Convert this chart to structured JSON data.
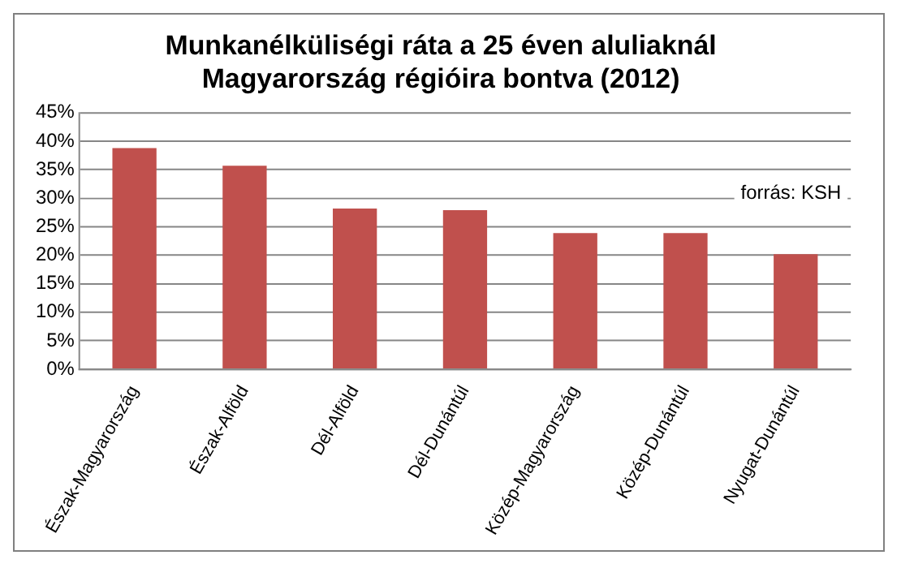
{
  "chart_data": {
    "type": "bar",
    "title": "Munkanélküliségi ráta a 25 éven aluliaknál\nMagyarország régióira bontva (2012)",
    "categories": [
      "Észak-Magyarország",
      "Észak-Alföld",
      "Dél-Alföld",
      "Dél-Dunántúl",
      "Közép-Magyarország",
      "Közép-Dunántúl",
      "Nyugat-Dunántúl"
    ],
    "values": [
      38.8,
      35.7,
      28.2,
      27.9,
      23.9,
      23.9,
      20.2
    ],
    "color": "#c0504d",
    "ylim": [
      0,
      45
    ],
    "yticks": [
      {
        "value": 0,
        "label": "0%"
      },
      {
        "value": 5,
        "label": "5%"
      },
      {
        "value": 10,
        "label": "10%"
      },
      {
        "value": 15,
        "label": "15%"
      },
      {
        "value": 20,
        "label": "20%"
      },
      {
        "value": 25,
        "label": "25%"
      },
      {
        "value": 30,
        "label": "30%"
      },
      {
        "value": 35,
        "label": "35%"
      },
      {
        "value": 40,
        "label": "40%"
      },
      {
        "value": 45,
        "label": "45%"
      }
    ],
    "grid": "y",
    "annotations": [
      "forrás: KSH"
    ]
  }
}
